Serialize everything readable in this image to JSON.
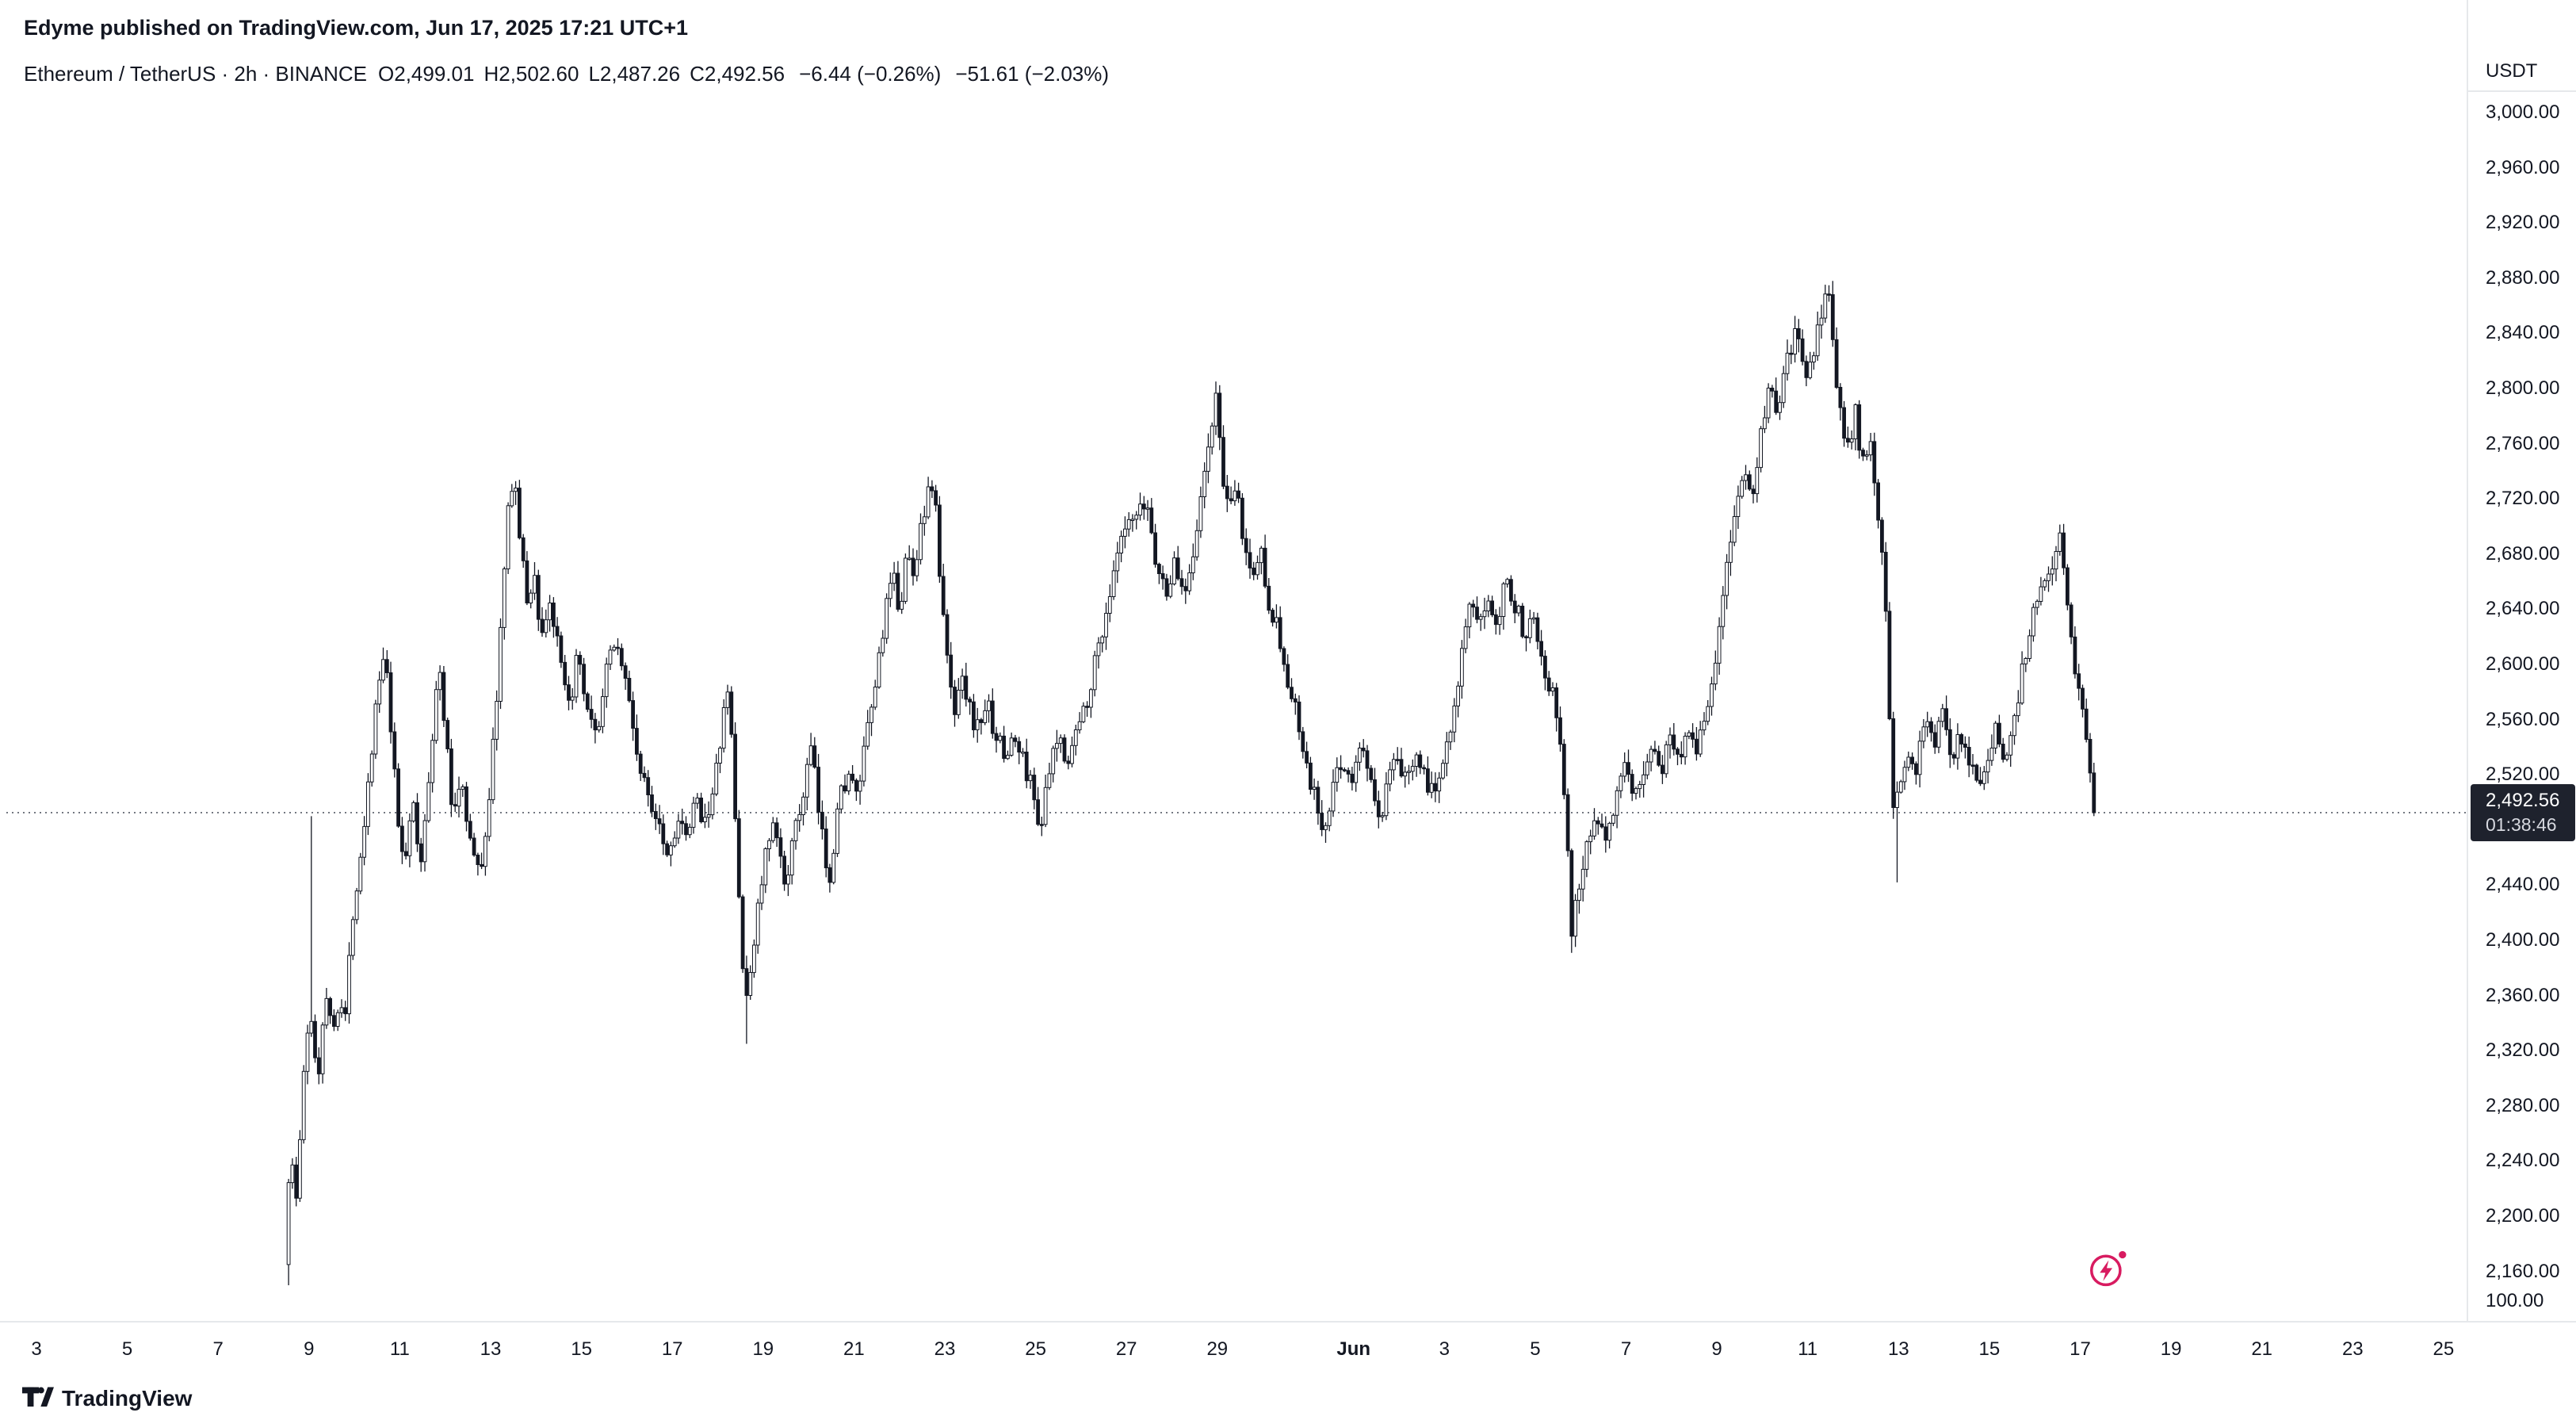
{
  "header": {
    "publish_line": "Edyme published on TradingView.com, Jun 17, 2025 17:21 UTC+1"
  },
  "legend": {
    "title": "Ethereum / TetherUS · 2h · BINANCE",
    "open": "O2,499.01",
    "high": "H2,502.60",
    "low": "L2,487.26",
    "close": "C2,492.56",
    "change_bar": "−6.44 (−0.26%)",
    "change_day": "−51.61 (−2.03%)"
  },
  "price_axis": {
    "currency": "USDT",
    "bottom_label": "100.00",
    "current": {
      "price": "2,492.56",
      "countdown": "01:38:46"
    }
  },
  "time_axis": {
    "ticks": [
      {
        "label": "3",
        "day": 0
      },
      {
        "label": "5",
        "day": 2
      },
      {
        "label": "7",
        "day": 4
      },
      {
        "label": "9",
        "day": 6
      },
      {
        "label": "11",
        "day": 8
      },
      {
        "label": "13",
        "day": 10
      },
      {
        "label": "15",
        "day": 12
      },
      {
        "label": "17",
        "day": 14
      },
      {
        "label": "19",
        "day": 16
      },
      {
        "label": "21",
        "day": 18
      },
      {
        "label": "23",
        "day": 20
      },
      {
        "label": "25",
        "day": 22
      },
      {
        "label": "27",
        "day": 24
      },
      {
        "label": "29",
        "day": 26
      },
      {
        "label": "Jun",
        "day": 29,
        "bold": true
      },
      {
        "label": "3",
        "day": 31
      },
      {
        "label": "5",
        "day": 33
      },
      {
        "label": "7",
        "day": 35
      },
      {
        "label": "9",
        "day": 37
      },
      {
        "label": "11",
        "day": 39
      },
      {
        "label": "13",
        "day": 41
      },
      {
        "label": "15",
        "day": 43
      },
      {
        "label": "17",
        "day": 45
      },
      {
        "label": "19",
        "day": 47
      },
      {
        "label": "21",
        "day": 49
      },
      {
        "label": "23",
        "day": 51
      },
      {
        "label": "25",
        "day": 53
      }
    ]
  },
  "footer": {
    "brand": "TradingView"
  },
  "colors": {
    "candle_up": "#ffffff",
    "candle_down": "#131722",
    "wick": "#131722",
    "badge_bg": "#1e222d",
    "dotted_line": "#555b66",
    "reaction_pink": "#d81b60",
    "text": "#131722",
    "axis_line": "#e6e8eb"
  },
  "chart_data": {
    "type": "candlestick",
    "symbol": "Ethereum / TetherUS (ETHUSDT)",
    "exchange": "BINANCE",
    "interval": "2h",
    "date_range": "May 8 – Jun 17, 2025 (x axis drawn May 3 – Jun 25)",
    "ohlc_last": {
      "open": 2499.01,
      "high": 2502.6,
      "low": 2487.26,
      "close": 2492.56
    },
    "last_close": 2492.56,
    "change_bar_pct": -0.26,
    "change_day_pct": -2.03,
    "candles_per_day": 12,
    "y_ticks": [
      {
        "label": "3,000.00",
        "value": 3000
      },
      {
        "label": "2,960.00",
        "value": 2960
      },
      {
        "label": "2,920.00",
        "value": 2920
      },
      {
        "label": "2,880.00",
        "value": 2880
      },
      {
        "label": "2,840.00",
        "value": 2840
      },
      {
        "label": "2,800.00",
        "value": 2800
      },
      {
        "label": "2,760.00",
        "value": 2760
      },
      {
        "label": "2,720.00",
        "value": 2720
      },
      {
        "label": "2,680.00",
        "value": 2680
      },
      {
        "label": "2,640.00",
        "value": 2640
      },
      {
        "label": "2,600.00",
        "value": 2600
      },
      {
        "label": "2,560.00",
        "value": 2560
      },
      {
        "label": "2,520.00",
        "value": 2520
      },
      {
        "label": "2,440.00",
        "value": 2440
      },
      {
        "label": "2,400.00",
        "value": 2400
      },
      {
        "label": "2,360.00",
        "value": 2360
      },
      {
        "label": "2,320.00",
        "value": 2320
      },
      {
        "label": "2,280.00",
        "value": 2280
      },
      {
        "label": "2,240.00",
        "value": 2240
      },
      {
        "label": "2,200.00",
        "value": 2200
      },
      {
        "label": "2,160.00",
        "value": 2160
      }
    ],
    "price_path": [
      [
        5.51,
        2165
      ],
      [
        5.62,
        2250
      ],
      [
        5.77,
        2210
      ],
      [
        5.95,
        2320
      ],
      [
        6.1,
        2340
      ],
      [
        6.25,
        2300
      ],
      [
        6.4,
        2370
      ],
      [
        6.55,
        2330
      ],
      [
        6.7,
        2360
      ],
      [
        6.85,
        2345
      ],
      [
        7.0,
        2420
      ],
      [
        7.15,
        2455
      ],
      [
        7.3,
        2500
      ],
      [
        7.45,
        2550
      ],
      [
        7.6,
        2590
      ],
      [
        7.72,
        2605
      ],
      [
        7.85,
        2550
      ],
      [
        8.0,
        2485
      ],
      [
        8.15,
        2455
      ],
      [
        8.3,
        2505
      ],
      [
        8.5,
        2450
      ],
      [
        8.7,
        2530
      ],
      [
        8.9,
        2600
      ],
      [
        9.05,
        2550
      ],
      [
        9.2,
        2490
      ],
      [
        9.4,
        2520
      ],
      [
        9.6,
        2470
      ],
      [
        9.8,
        2445
      ],
      [
        10.0,
        2500
      ],
      [
        10.15,
        2565
      ],
      [
        10.3,
        2645
      ],
      [
        10.45,
        2720
      ],
      [
        10.55,
        2742
      ],
      [
        10.7,
        2685
      ],
      [
        10.85,
        2645
      ],
      [
        11.0,
        2665
      ],
      [
        11.15,
        2620
      ],
      [
        11.35,
        2645
      ],
      [
        11.55,
        2605
      ],
      [
        11.75,
        2565
      ],
      [
        11.95,
        2605
      ],
      [
        12.15,
        2565
      ],
      [
        12.35,
        2545
      ],
      [
        12.55,
        2585
      ],
      [
        12.75,
        2620
      ],
      [
        12.95,
        2600
      ],
      [
        13.15,
        2560
      ],
      [
        13.35,
        2520
      ],
      [
        13.55,
        2500
      ],
      [
        13.75,
        2490
      ],
      [
        13.95,
        2460
      ],
      [
        14.15,
        2490
      ],
      [
        14.35,
        2470
      ],
      [
        14.55,
        2500
      ],
      [
        14.75,
        2490
      ],
      [
        14.95,
        2505
      ],
      [
        15.15,
        2560
      ],
      [
        15.3,
        2582
      ],
      [
        15.45,
        2470
      ],
      [
        15.55,
        2410
      ],
      [
        15.65,
        2345
      ],
      [
        15.8,
        2390
      ],
      [
        15.95,
        2430
      ],
      [
        16.1,
        2462
      ],
      [
        16.3,
        2482
      ],
      [
        16.5,
        2442
      ],
      [
        16.7,
        2470
      ],
      [
        16.9,
        2502
      ],
      [
        17.1,
        2540
      ],
      [
        17.3,
        2482
      ],
      [
        17.5,
        2445
      ],
      [
        17.7,
        2500
      ],
      [
        17.9,
        2522
      ],
      [
        18.1,
        2502
      ],
      [
        18.3,
        2542
      ],
      [
        18.5,
        2582
      ],
      [
        18.7,
        2632
      ],
      [
        18.9,
        2662
      ],
      [
        19.05,
        2640
      ],
      [
        19.2,
        2682
      ],
      [
        19.35,
        2662
      ],
      [
        19.5,
        2702
      ],
      [
        19.8,
        2736
      ],
      [
        19.95,
        2652
      ],
      [
        20.1,
        2602
      ],
      [
        20.25,
        2562
      ],
      [
        20.4,
        2602
      ],
      [
        20.55,
        2572
      ],
      [
        20.75,
        2552
      ],
      [
        20.95,
        2572
      ],
      [
        21.15,
        2552
      ],
      [
        21.35,
        2532
      ],
      [
        21.55,
        2547
      ],
      [
        21.75,
        2532
      ],
      [
        21.95,
        2512
      ],
      [
        22.15,
        2482
      ],
      [
        22.35,
        2522
      ],
      [
        22.55,
        2547
      ],
      [
        22.75,
        2532
      ],
      [
        22.95,
        2552
      ],
      [
        23.15,
        2572
      ],
      [
        23.35,
        2602
      ],
      [
        23.55,
        2632
      ],
      [
        23.75,
        2662
      ],
      [
        23.95,
        2692
      ],
      [
        24.5,
        2716
      ],
      [
        24.7,
        2672
      ],
      [
        24.9,
        2652
      ],
      [
        25.1,
        2672
      ],
      [
        25.3,
        2652
      ],
      [
        25.5,
        2682
      ],
      [
        25.7,
        2722
      ],
      [
        25.9,
        2772
      ],
      [
        26.02,
        2792
      ],
      [
        26.15,
        2742
      ],
      [
        26.3,
        2702
      ],
      [
        26.45,
        2732
      ],
      [
        26.6,
        2692
      ],
      [
        26.8,
        2662
      ],
      [
        27.0,
        2682
      ],
      [
        27.2,
        2642
      ],
      [
        27.4,
        2622
      ],
      [
        27.6,
        2582
      ],
      [
        27.8,
        2562
      ],
      [
        28.0,
        2522
      ],
      [
        28.2,
        2502
      ],
      [
        28.4,
        2472
      ],
      [
        28.6,
        2512
      ],
      [
        28.8,
        2532
      ],
      [
        29.0,
        2512
      ],
      [
        29.2,
        2542
      ],
      [
        29.4,
        2522
      ],
      [
        29.6,
        2482
      ],
      [
        29.8,
        2512
      ],
      [
        30.0,
        2532
      ],
      [
        30.2,
        2512
      ],
      [
        30.4,
        2542
      ],
      [
        30.6,
        2522
      ],
      [
        30.8,
        2502
      ],
      [
        31.0,
        2532
      ],
      [
        31.2,
        2562
      ],
      [
        31.4,
        2602
      ],
      [
        31.6,
        2642
      ],
      [
        31.8,
        2622
      ],
      [
        32.0,
        2652
      ],
      [
        32.2,
        2632
      ],
      [
        32.4,
        2667
      ],
      [
        32.6,
        2642
      ],
      [
        32.8,
        2622
      ],
      [
        33.0,
        2642
      ],
      [
        33.2,
        2602
      ],
      [
        33.4,
        2582
      ],
      [
        33.6,
        2542
      ],
      [
        33.75,
        2472
      ],
      [
        33.85,
        2402
      ],
      [
        34.0,
        2442
      ],
      [
        34.2,
        2472
      ],
      [
        34.4,
        2492
      ],
      [
        34.6,
        2477
      ],
      [
        34.8,
        2502
      ],
      [
        35.0,
        2522
      ],
      [
        35.2,
        2502
      ],
      [
        35.4,
        2522
      ],
      [
        35.6,
        2542
      ],
      [
        35.8,
        2522
      ],
      [
        36.0,
        2547
      ],
      [
        36.2,
        2532
      ],
      [
        36.4,
        2557
      ],
      [
        36.6,
        2542
      ],
      [
        36.8,
        2562
      ],
      [
        37.0,
        2602
      ],
      [
        37.2,
        2652
      ],
      [
        37.4,
        2702
      ],
      [
        37.6,
        2742
      ],
      [
        37.8,
        2722
      ],
      [
        38.0,
        2762
      ],
      [
        38.2,
        2802
      ],
      [
        38.4,
        2782
      ],
      [
        38.6,
        2822
      ],
      [
        38.8,
        2842
      ],
      [
        39.0,
        2802
      ],
      [
        39.5,
        2876
      ],
      [
        39.65,
        2812
      ],
      [
        39.8,
        2772
      ],
      [
        39.95,
        2752
      ],
      [
        40.1,
        2782
      ],
      [
        40.25,
        2742
      ],
      [
        40.4,
        2762
      ],
      [
        40.55,
        2722
      ],
      [
        40.7,
        2682
      ],
      [
        40.85,
        2562
      ],
      [
        40.95,
        2485
      ],
      [
        41.1,
        2522
      ],
      [
        41.25,
        2542
      ],
      [
        41.4,
        2522
      ],
      [
        41.55,
        2552
      ],
      [
        41.7,
        2562
      ],
      [
        41.85,
        2542
      ],
      [
        42.0,
        2562
      ],
      [
        42.2,
        2532
      ],
      [
        42.4,
        2552
      ],
      [
        42.6,
        2532
      ],
      [
        42.8,
        2512
      ],
      [
        43.0,
        2532
      ],
      [
        43.2,
        2552
      ],
      [
        43.4,
        2532
      ],
      [
        43.6,
        2562
      ],
      [
        43.8,
        2602
      ],
      [
        44.0,
        2642
      ],
      [
        44.6,
        2690
      ],
      [
        44.75,
        2652
      ],
      [
        44.9,
        2602
      ],
      [
        45.05,
        2582
      ],
      [
        45.2,
        2542
      ],
      [
        45.35,
        2493
      ]
    ],
    "wick_events": [
      {
        "day": 5.53,
        "low": 2150
      },
      {
        "day": 6.03,
        "high": 2490
      },
      {
        "day": 15.63,
        "low": 2325
      },
      {
        "day": 33.84,
        "low": 2391
      },
      {
        "day": 39.52,
        "high": 2878
      },
      {
        "day": 40.94,
        "low": 2442
      }
    ]
  }
}
